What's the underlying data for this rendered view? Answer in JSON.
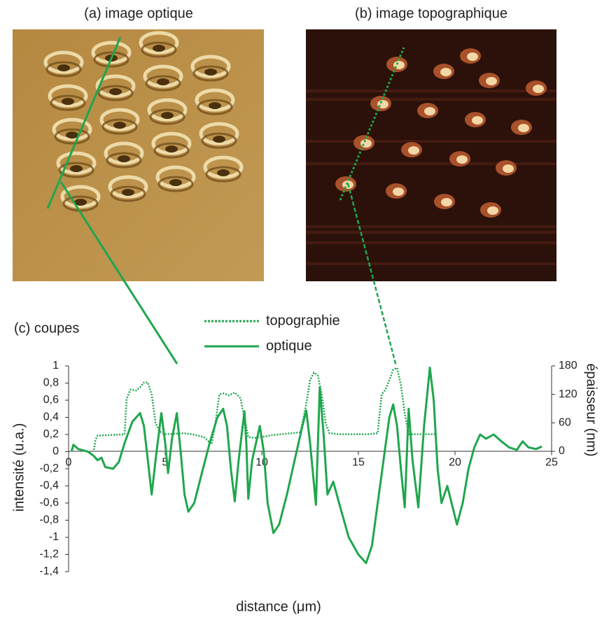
{
  "panels": [
    {
      "title": "(a) image optique"
    },
    {
      "title": "(b) image topographique"
    }
  ],
  "chart_data": {
    "type": "line",
    "title": "(c) coupes",
    "x_label": "distance (μm)",
    "y_label": "intensité (u.a.)",
    "y2_label": "épaisseur (nm)",
    "xlim": [
      0,
      25
    ],
    "xticks": [
      0,
      5,
      10,
      15,
      20,
      25
    ],
    "ylim": [
      -1.4,
      1
    ],
    "yticks": [
      {
        "value": -1.4,
        "label": "-1,4"
      },
      {
        "value": -1.2,
        "label": "-1,2"
      },
      -1,
      {
        "value": -0.8,
        "label": "-0,8"
      },
      {
        "value": -0.6,
        "label": "-0,6"
      },
      {
        "value": -0.4,
        "label": "-0,4"
      },
      {
        "value": -0.2,
        "label": "-0,2"
      },
      0,
      {
        "value": 0.2,
        "label": "0,2"
      },
      {
        "value": 0.4,
        "label": "0,4"
      },
      {
        "value": 0.6,
        "label": "0,6"
      },
      {
        "value": 0.8,
        "label": "0,8"
      },
      1
    ],
    "y2lim": [
      0,
      180
    ],
    "y2ticks": [
      0,
      60,
      120,
      180
    ],
    "series": [
      {
        "name": "topographie",
        "color": "#1fa64d",
        "style": "dotted",
        "axis": "y2",
        "x": [
          1.3,
          1.4,
          1.5,
          2.0,
          2.5,
          2.9,
          3.0,
          3.2,
          3.5,
          3.7,
          3.9,
          4.1,
          4.3,
          4.5,
          4.7,
          5.0,
          5.5,
          6.0,
          6.5,
          7.0,
          7.4,
          7.6,
          7.8,
          8.0,
          8.3,
          8.6,
          8.9,
          9.1,
          9.3,
          9.6,
          10.0,
          10.5,
          11.0,
          11.5,
          12.0,
          12.3,
          12.5,
          12.7,
          12.9,
          13.1,
          13.3,
          13.5,
          14.0,
          15.0,
          15.5,
          16.0,
          16.2,
          16.4,
          16.6,
          16.8,
          17.0,
          17.2,
          17.4,
          17.6,
          18.0,
          18.5,
          19.0
        ],
        "values": [
          3,
          25,
          33,
          34,
          35,
          36,
          110,
          130,
          128,
          135,
          145,
          145,
          120,
          60,
          42,
          36,
          37,
          38,
          35,
          30,
          15,
          60,
          120,
          122,
          118,
          124,
          112,
          70,
          30,
          28,
          30,
          34,
          36,
          38,
          40,
          100,
          150,
          166,
          160,
          120,
          60,
          38,
          36,
          36,
          36,
          38,
          120,
          130,
          150,
          172,
          176,
          140,
          80,
          36,
          36,
          36,
          36
        ]
      },
      {
        "name": "optique",
        "color": "#1fa64d",
        "style": "solid",
        "x": [
          0.15,
          0.25,
          0.5,
          1.0,
          1.3,
          1.5,
          1.7,
          1.9,
          2.3,
          2.6,
          2.9,
          3.3,
          3.7,
          3.9,
          4.1,
          4.3,
          4.5,
          4.8,
          5.0,
          5.15,
          5.35,
          5.6,
          5.8,
          6.0,
          6.2,
          6.5,
          6.9,
          7.3,
          7.7,
          8.0,
          8.2,
          8.4,
          8.6,
          8.8,
          9.1,
          9.2,
          9.3,
          9.5,
          9.9,
          10.1,
          10.3,
          10.6,
          10.9,
          11.3,
          11.7,
          12.1,
          12.3,
          12.5,
          12.8,
          13.0,
          13.2,
          13.4,
          13.7,
          14.0,
          14.5,
          15.0,
          15.4,
          15.7,
          16.0,
          16.3,
          16.6,
          16.8,
          17.0,
          17.2,
          17.4,
          17.6,
          17.8,
          18.1,
          18.4,
          18.7,
          18.9,
          19.1,
          19.3,
          19.6,
          20.1,
          20.4,
          20.7,
          21.0,
          21.3,
          21.6,
          22.0,
          22.4,
          22.8,
          23.2,
          23.5,
          23.8,
          24.2,
          24.5
        ],
        "values": [
          0.0,
          0.08,
          0.03,
          0.0,
          -0.05,
          -0.1,
          -0.07,
          -0.18,
          -0.2,
          -0.12,
          0.1,
          0.35,
          0.45,
          0.3,
          -0.1,
          -0.5,
          -0.1,
          0.45,
          0.1,
          -0.25,
          0.15,
          0.45,
          0.0,
          -0.5,
          -0.7,
          -0.6,
          -0.25,
          0.1,
          0.4,
          0.5,
          0.3,
          -0.2,
          -0.58,
          -0.1,
          0.47,
          0.1,
          -0.55,
          -0.1,
          0.3,
          0.0,
          -0.6,
          -0.95,
          -0.85,
          -0.5,
          -0.1,
          0.3,
          0.48,
          0.1,
          -0.62,
          0.75,
          0.2,
          -0.5,
          -0.35,
          -0.6,
          -1.0,
          -1.2,
          -1.3,
          -1.1,
          -0.6,
          -0.1,
          0.4,
          0.55,
          0.3,
          -0.2,
          -0.65,
          0.5,
          -0.1,
          -0.65,
          0.3,
          0.98,
          0.6,
          -0.2,
          -0.6,
          -0.4,
          -0.85,
          -0.6,
          -0.2,
          0.05,
          0.2,
          0.15,
          0.2,
          0.12,
          0.05,
          0.02,
          0.12,
          0.05,
          0.03,
          0.06
        ]
      }
    ]
  }
}
